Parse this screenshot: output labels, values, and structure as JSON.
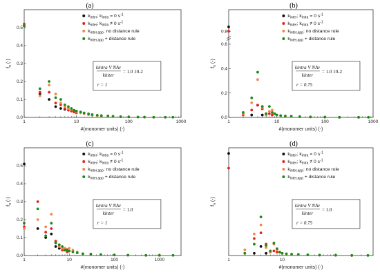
{
  "colors": {
    "series_0": "#111111",
    "series_1": "#e8221a",
    "series_2": "#f2874a",
    "series_3": "#1a8a1a",
    "axis": "#333333"
  },
  "legend_template": [
    {
      "main": "k",
      "sub": "inter",
      "rest": "; k",
      "sub2": "intra",
      "tail": " = 0 s",
      "sup": "-1"
    },
    {
      "main": "k",
      "sub": "inter",
      "rest": "; k",
      "sub2": "intra",
      "tail": " ≠ 0 s",
      "sup": "-1"
    },
    {
      "main": "k",
      "sub": "inter,app",
      "rest": "",
      "sub2": "",
      "tail": ": no distance rule",
      "sup": ""
    },
    {
      "main": "k",
      "sub": "inter,app",
      "rest": "",
      "sub2": "",
      "tail": " + distance rule",
      "sup": ""
    }
  ],
  "chart_data": [
    {
      "panel": "(a)",
      "type": "scatter",
      "xscale": "log",
      "xlim": [
        1,
        1000
      ],
      "ylim": [
        0,
        0.6
      ],
      "xticks": [
        "1",
        "10",
        "100",
        "1000"
      ],
      "yticks": [
        "0.0",
        "0.1",
        "0.2",
        "0.3",
        "0.4",
        "0.5"
      ],
      "xlabel": "#(monomer units) (-)",
      "ylabel": "f_n (-)",
      "legend_position": "top-right",
      "box": {
        "num": "k_intra V N_Av",
        "den": "k_inter",
        "val": "= 1.0 10^-2",
        "r": "r = 1"
      },
      "series": [
        {
          "name": "kinter; kintra = 0 s-1",
          "points": [
            [
              1,
              0.51
            ],
            [
              2,
              0.13
            ],
            [
              3,
              0.1
            ],
            [
              4,
              0.06
            ],
            [
              5,
              0.05
            ],
            [
              6,
              0.045
            ]
          ]
        },
        {
          "name": "kinter; kintra ≠ 0 s-1",
          "points": [
            [
              1,
              0.52
            ],
            [
              2,
              0.14
            ],
            [
              3,
              0.14
            ],
            [
              4,
              0.08
            ],
            [
              5,
              0.07
            ],
            [
              6,
              0.05
            ],
            [
              7,
              0.04
            ],
            [
              8,
              0.035
            ],
            [
              9,
              0.03
            ],
            [
              10,
              0.025
            ]
          ]
        },
        {
          "name": "kinter,app: no distance rule",
          "points": [
            [
              1,
              0.51
            ],
            [
              2,
              0.12
            ],
            [
              3,
              0.18
            ],
            [
              4,
              0.13
            ],
            [
              5,
              0.08
            ],
            [
              6,
              0.06
            ],
            [
              7,
              0.05
            ],
            [
              8,
              0.045
            ],
            [
              9,
              0.04
            ],
            [
              10,
              0.03
            ],
            [
              12,
              0.025
            ],
            [
              14,
              0.02
            ],
            [
              17,
              0.015
            ],
            [
              20,
              0.012
            ],
            [
              25,
              0.01
            ],
            [
              30,
              0.008
            ],
            [
              40,
              0.006
            ],
            [
              50,
              0.004
            ],
            [
              70,
              0.003
            ],
            [
              100,
              0.002
            ],
            [
              150,
              0.002
            ],
            [
              200,
              0.001
            ],
            [
              300,
              0.001
            ],
            [
              500,
              0.001
            ]
          ]
        },
        {
          "name": "kinter,app + distance rule",
          "points": [
            [
              1,
              0.51
            ],
            [
              2,
              0.16
            ],
            [
              3,
              0.2
            ],
            [
              4,
              0.11
            ],
            [
              5,
              0.1
            ],
            [
              6,
              0.07
            ],
            [
              7,
              0.06
            ],
            [
              8,
              0.05
            ],
            [
              9,
              0.04
            ],
            [
              10,
              0.035
            ],
            [
              12,
              0.03
            ],
            [
              14,
              0.025
            ],
            [
              17,
              0.02
            ],
            [
              20,
              0.016
            ],
            [
              25,
              0.012
            ],
            [
              30,
              0.01
            ],
            [
              40,
              0.008
            ],
            [
              50,
              0.006
            ],
            [
              70,
              0.004
            ],
            [
              100,
              0.003
            ],
            [
              150,
              0.002
            ],
            [
              200,
              0.002
            ],
            [
              300,
              0.001
            ],
            [
              500,
              0.001
            ],
            [
              700,
              0.001
            ]
          ]
        }
      ]
    },
    {
      "panel": "(b)",
      "type": "scatter",
      "xscale": "log",
      "xlim": [
        1,
        1000
      ],
      "ylim": [
        0,
        0.85
      ],
      "ybreak": [
        0.6,
        0.8
      ],
      "xticks": [
        "1",
        "10",
        "100",
        "1000"
      ],
      "yticks": [
        "0.0",
        "0.2",
        "0.4",
        "0.6",
        "0.8"
      ],
      "xlabel": "#(monomer units) (-)",
      "ylabel": "f_n (-)",
      "legend_position": "top-right",
      "box": {
        "num": "k_intra V N_Av",
        "den": "k_inter",
        "val": "= 1.0 10^-2",
        "r": "r = 0.75"
      },
      "series": [
        {
          "name": "kinter; kintra = 0 s-1",
          "points": [
            [
              1,
              0.81
            ],
            [
              3,
              0.02
            ],
            [
              4,
              0.1
            ],
            [
              5,
              0.02
            ],
            [
              6,
              0.03
            ]
          ]
        },
        {
          "name": "kinter; kintra ≠ 0 s-1",
          "points": [
            [
              1,
              0.8
            ],
            [
              2,
              0.02
            ],
            [
              3,
              0.06
            ],
            [
              4,
              0.1
            ],
            [
              5,
              0.07
            ],
            [
              6,
              0.02
            ],
            [
              7,
              0.03
            ],
            [
              8,
              0.02
            ]
          ]
        },
        {
          "name": "kinter,app: no distance rule",
          "points": [
            [
              2,
              0.03
            ],
            [
              3,
              0.12
            ],
            [
              4,
              0.31
            ],
            [
              5,
              0.08
            ],
            [
              6,
              0.02
            ],
            [
              7,
              0.05
            ],
            [
              8,
              0.06
            ],
            [
              9,
              0.03
            ],
            [
              10,
              0.02
            ],
            [
              12,
              0.015
            ],
            [
              15,
              0.01
            ],
            [
              20,
              0.008
            ],
            [
              30,
              0.005
            ],
            [
              50,
              0.003
            ],
            [
              100,
              0.002
            ],
            [
              200,
              0.001
            ],
            [
              500,
              0.001
            ]
          ]
        },
        {
          "name": "kinter,app + distance rule",
          "points": [
            [
              2,
              0.04
            ],
            [
              3,
              0.16
            ],
            [
              4,
              0.37
            ],
            [
              5,
              0.09
            ],
            [
              6,
              0.03
            ],
            [
              7,
              0.09
            ],
            [
              8,
              0.04
            ],
            [
              9,
              0.03
            ],
            [
              10,
              0.02
            ],
            [
              12,
              0.015
            ],
            [
              15,
              0.012
            ],
            [
              20,
              0.01
            ],
            [
              30,
              0.006
            ],
            [
              50,
              0.004
            ],
            [
              100,
              0.002
            ],
            [
              200,
              0.001
            ],
            [
              500,
              0.001
            ],
            [
              800,
              0.001
            ]
          ]
        }
      ]
    },
    {
      "panel": "(c)",
      "type": "scatter",
      "xscale": "log",
      "xlim": [
        1,
        3000
      ],
      "ylim": [
        0,
        0.6
      ],
      "xticks": [
        "1",
        "10",
        "100",
        "1000"
      ],
      "yticks": [
        "0.0",
        "0.1",
        "0.2",
        "0.3",
        "0.4",
        "0.5"
      ],
      "xlabel": "#(monomer units) (-)",
      "ylabel": "f_n (-)",
      "legend_position": "top-right",
      "box": {
        "num": "k_intra V N_Av",
        "den": "k_inter",
        "val": "= 1.0",
        "r": "r = 1"
      },
      "series": [
        {
          "name": "kinter; kintra = 0 s-1",
          "points": [
            [
              1,
              0.51
            ],
            [
              2,
              0.15
            ],
            [
              3,
              0.1
            ],
            [
              4,
              0.12
            ],
            [
              5,
              0.05
            ],
            [
              6,
              0.04
            ]
          ]
        },
        {
          "name": "kinter; kintra ≠ 0 s-1",
          "points": [
            [
              1,
              0.16
            ],
            [
              2,
              0.3
            ],
            [
              3,
              0.13
            ],
            [
              4,
              0.15
            ],
            [
              5,
              0.08
            ],
            [
              6,
              0.06
            ],
            [
              7,
              0.03
            ],
            [
              8,
              0.04
            ],
            [
              9,
              0.02
            ]
          ]
        },
        {
          "name": "kinter,app: no distance rule",
          "points": [
            [
              1,
              0.15
            ],
            [
              2,
              0.2
            ],
            [
              3,
              0.16
            ],
            [
              4,
              0.23
            ],
            [
              5,
              0.07
            ],
            [
              6,
              0.05
            ],
            [
              7,
              0.04
            ],
            [
              8,
              0.04
            ],
            [
              9,
              0.035
            ],
            [
              10,
              0.04
            ],
            [
              12,
              0.03
            ],
            [
              15,
              0.02
            ],
            [
              20,
              0.01
            ],
            [
              30,
              0.008
            ],
            [
              50,
              0.005
            ],
            [
              100,
              0.003
            ],
            [
              200,
              0.002
            ],
            [
              500,
              0.001
            ],
            [
              1000,
              0.001
            ]
          ]
        },
        {
          "name": "kinter,app + distance rule",
          "points": [
            [
              1,
              0.18
            ],
            [
              2,
              0.26
            ],
            [
              3,
              0.11
            ],
            [
              4,
              0.18
            ],
            [
              5,
              0.07
            ],
            [
              6,
              0.06
            ],
            [
              7,
              0.05
            ],
            [
              8,
              0.03
            ],
            [
              9,
              0.03
            ],
            [
              10,
              0.025
            ],
            [
              12,
              0.02
            ],
            [
              15,
              0.015
            ],
            [
              20,
              0.01
            ],
            [
              30,
              0.008
            ],
            [
              50,
              0.005
            ],
            [
              100,
              0.003
            ],
            [
              200,
              0.002
            ],
            [
              500,
              0.001
            ],
            [
              1000,
              0.001
            ],
            [
              2000,
              0.001
            ]
          ]
        }
      ]
    },
    {
      "panel": "(d)",
      "type": "scatter",
      "xscale": "log",
      "xlim": [
        1,
        500
      ],
      "ylim": [
        0,
        0.95
      ],
      "xticks": [
        "1",
        "10"
      ],
      "yticks": [],
      "xlabel": "#(monomer units) (-)",
      "ylabel": "f_n (-)",
      "legend_position": "top-right",
      "box": {
        "num": "k_intra V N_Av",
        "den": "k_inter",
        "val": "= 1.0",
        "r": "r = 0.75"
      },
      "series": [
        {
          "name": "kinter; kintra = 0 s-1",
          "points": [
            [
              1,
              0.9
            ],
            [
              3,
              0.02
            ],
            [
              4,
              0.08
            ],
            [
              5,
              0.02
            ],
            [
              6,
              0.03
            ]
          ]
        },
        {
          "name": "kinter; kintra ≠ 0 s-1",
          "points": [
            [
              1,
              0.77
            ],
            [
              2,
              0.02
            ],
            [
              3,
              0.15
            ],
            [
              4,
              0.2
            ],
            [
              5,
              0.1
            ],
            [
              6,
              0.03
            ],
            [
              7,
              0.04
            ],
            [
              8,
              0.03
            ]
          ]
        },
        {
          "name": "kinter,app: no distance rule",
          "points": [
            [
              2,
              0.05
            ],
            [
              3,
              0.19
            ],
            [
              4,
              0.27
            ],
            [
              5,
              0.07
            ],
            [
              6,
              0.03
            ],
            [
              7,
              0.1
            ],
            [
              8,
              0.05
            ],
            [
              9,
              0.03
            ],
            [
              10,
              0.02
            ],
            [
              12,
              0.015
            ],
            [
              15,
              0.01
            ],
            [
              20,
              0.008
            ],
            [
              30,
              0.005
            ],
            [
              50,
              0.003
            ],
            [
              100,
              0.002
            ],
            [
              200,
              0.001
            ]
          ]
        },
        {
          "name": "kinter,app + distance rule",
          "points": [
            [
              2,
              0.02
            ],
            [
              3,
              0.1
            ],
            [
              4,
              0.34
            ],
            [
              5,
              0.09
            ],
            [
              6,
              0.04
            ],
            [
              7,
              0.11
            ],
            [
              8,
              0.06
            ],
            [
              9,
              0.03
            ],
            [
              10,
              0.02
            ],
            [
              12,
              0.015
            ],
            [
              15,
              0.012
            ],
            [
              20,
              0.01
            ],
            [
              30,
              0.006
            ],
            [
              50,
              0.004
            ],
            [
              100,
              0.002
            ],
            [
              200,
              0.001
            ],
            [
              400,
              0.001
            ]
          ]
        }
      ]
    }
  ]
}
